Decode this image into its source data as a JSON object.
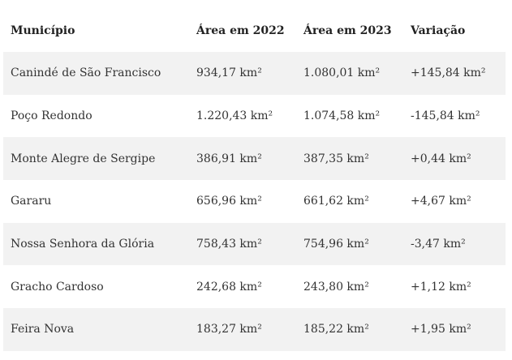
{
  "table": {
    "headers": [
      "Município",
      "Área em 2022",
      "Área em 2023",
      "Variação"
    ],
    "rows": [
      [
        "Canindé de São Francisco",
        "934,17 km²",
        "1.080,01 km²",
        "+145,84 km²"
      ],
      [
        "Poço Redondo",
        "1.220,43 km²",
        "1.074,58 km²",
        "-145,84 km²"
      ],
      [
        "Monte Alegre de Sergipe",
        "386,91 km²",
        "387,35 km²",
        "+0,44 km²"
      ],
      [
        "Gararu",
        "656,96 km²",
        "661,62 km²",
        "+4,67 km²"
      ],
      [
        "Nossa Senhora da Glória",
        "758,43 km²",
        "754,96 km²",
        "-3,47 km²"
      ],
      [
        "Gracho Cardoso",
        "242,68 km²",
        "243,80 km²",
        "+1,12 km²"
      ],
      [
        "Feira Nova",
        "183,27 km²",
        "185,22 km²",
        "+1,95 km²"
      ]
    ]
  },
  "colors": {
    "stripe": "#f2f2f2",
    "background": "#ffffff",
    "text": "#333333"
  }
}
